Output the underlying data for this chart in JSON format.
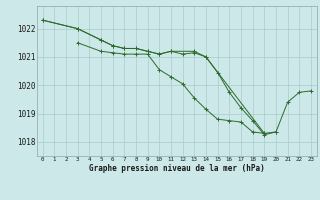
{
  "title": "Graphe pression niveau de la mer (hPa)",
  "bg_color": "#cce8e8",
  "grid_color": "#aacccc",
  "line_color": "#2d6b2d",
  "marker_color": "#2d6b2d",
  "x_ticks": [
    0,
    1,
    2,
    3,
    4,
    5,
    6,
    7,
    8,
    9,
    10,
    11,
    12,
    13,
    14,
    15,
    16,
    17,
    18,
    19,
    20,
    21,
    22,
    23
  ],
  "ylim": [
    1017.5,
    1022.8
  ],
  "yticks": [
    1018,
    1019,
    1020,
    1021,
    1022
  ],
  "line1_data_x": [
    0,
    3,
    5,
    6,
    7,
    8,
    9,
    10,
    11,
    13,
    14,
    19
  ],
  "line1_data_y": [
    1022.3,
    1022.0,
    1021.6,
    1021.4,
    1021.3,
    1021.3,
    1021.2,
    1021.1,
    1021.2,
    1021.2,
    1021.0,
    1018.3
  ],
  "line2_data_x": [
    3,
    5,
    6,
    7,
    8,
    9,
    10,
    11,
    12,
    13,
    14,
    15,
    16,
    17,
    18,
    19,
    20
  ],
  "line2_data_y": [
    1021.5,
    1021.2,
    1021.15,
    1021.1,
    1021.1,
    1021.1,
    1020.55,
    1020.3,
    1020.05,
    1019.55,
    1019.15,
    1018.8,
    1018.75,
    1018.7,
    1018.35,
    1018.3,
    1018.35
  ],
  "line3_data_x": [
    0,
    3,
    5,
    6,
    7,
    8,
    9,
    10,
    11,
    12,
    13,
    14,
    15,
    16,
    17,
    18,
    19,
    20,
    21,
    22,
    23
  ],
  "line3_data_y": [
    1022.3,
    1022.0,
    1021.6,
    1021.4,
    1021.3,
    1021.3,
    1021.2,
    1021.1,
    1021.2,
    1021.1,
    1021.15,
    1021.0,
    1020.45,
    1019.75,
    1019.2,
    1018.75,
    1018.25,
    1018.35,
    1019.4,
    1019.75,
    1019.8
  ],
  "xlabel_fontsize": 5.5,
  "ytick_fontsize": 5.5,
  "xtick_fontsize": 4.2,
  "linewidth": 0.7,
  "markersize": 2.5
}
